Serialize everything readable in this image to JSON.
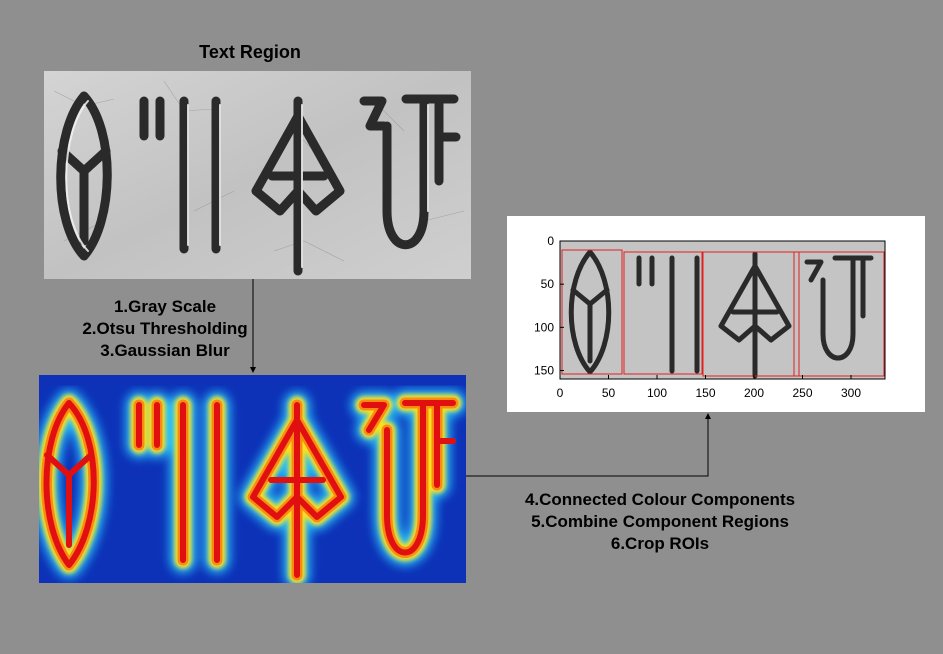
{
  "title": "Text Region",
  "steps_left": [
    "1.Gray Scale",
    "2.Otsu Thresholding",
    "3.Gaussian Blur"
  ],
  "steps_right": [
    "4.Connected Colour Components",
    "5.Combine Component Regions",
    "6.Crop ROIs"
  ],
  "plot": {
    "x_ticks": [
      "0",
      "50",
      "100",
      "150",
      "200",
      "250",
      "300"
    ],
    "y_ticks": [
      "0",
      "50",
      "100",
      "150"
    ]
  },
  "colors": {
    "background": "#8f8f8f",
    "roi_box": "#e02020",
    "heat_low": "#0a2bb0",
    "heat_high": "#e01010"
  }
}
